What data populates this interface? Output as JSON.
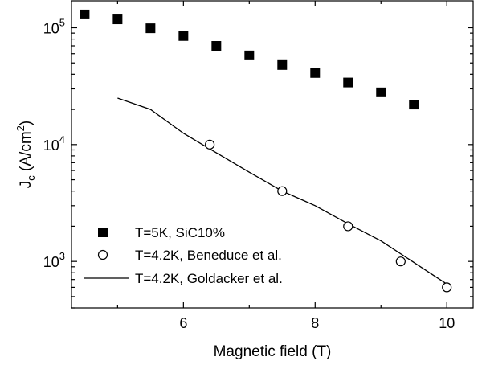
{
  "chart_data": {
    "type": "scatter",
    "xlabel": "Magnetic field (T)",
    "ylabel": "J_c (A/cm^2)",
    "ylabel_parts": {
      "main": "J",
      "sub": "c",
      "open": " (A/cm",
      "sup": "2",
      "close": ")"
    },
    "xlim": [
      4.3,
      10.4
    ],
    "ylim": [
      400,
      170000
    ],
    "yscale": "log",
    "xticks": [
      6,
      8,
      10
    ],
    "yticks": [
      {
        "value": 1000,
        "base": "10",
        "exp": "3"
      },
      {
        "value": 10000,
        "base": "10",
        "exp": "4"
      },
      {
        "value": 100000,
        "base": "10",
        "exp": "5"
      }
    ],
    "legend_position": "bottom-left",
    "series": [
      {
        "name": "T=5K, SiC10%",
        "marker": "filled-square",
        "x": [
          4.5,
          5.0,
          5.5,
          6.0,
          6.5,
          7.0,
          7.5,
          8.0,
          8.5,
          9.0,
          9.5
        ],
        "y": [
          130000,
          118000,
          99000,
          85000,
          70000,
          58000,
          48000,
          41000,
          34000,
          28000,
          22000
        ]
      },
      {
        "name": "T=4.2K, Beneduce et al.",
        "marker": "open-circle",
        "x": [
          6.4,
          7.5,
          8.5,
          9.3,
          10.0
        ],
        "y": [
          10000,
          4000,
          2000,
          1000,
          600
        ]
      },
      {
        "name": "T=4.2K, Goldacker et al.",
        "marker": "line",
        "x": [
          5.0,
          5.5,
          6.0,
          6.5,
          7.0,
          7.5,
          8.0,
          8.5,
          9.0,
          9.5,
          10.0
        ],
        "y": [
          25000,
          20000,
          12500,
          8500,
          5800,
          4000,
          3000,
          2100,
          1500,
          980,
          640
        ]
      }
    ]
  }
}
